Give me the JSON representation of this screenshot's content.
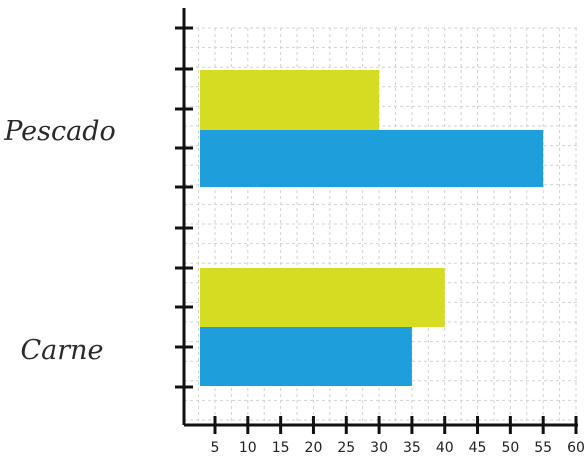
{
  "chart_data": {
    "type": "bar",
    "orientation": "horizontal",
    "title": "",
    "xlabel": "",
    "ylabel": "",
    "categories": [
      "Pescado",
      "Carne"
    ],
    "series": [
      {
        "color": "#d6dc22",
        "values": [
          30,
          40
        ]
      },
      {
        "color": "#1e9fdc",
        "values": [
          55,
          35
        ]
      }
    ],
    "xlim": [
      0,
      60
    ],
    "x_ticks": [
      "5",
      "10",
      "15",
      "20",
      "25",
      "30",
      "35",
      "40",
      "45",
      "50",
      "55",
      "60"
    ],
    "grid": true
  },
  "colors": {
    "grid": "#d2d2d2",
    "axis": "#111111"
  }
}
